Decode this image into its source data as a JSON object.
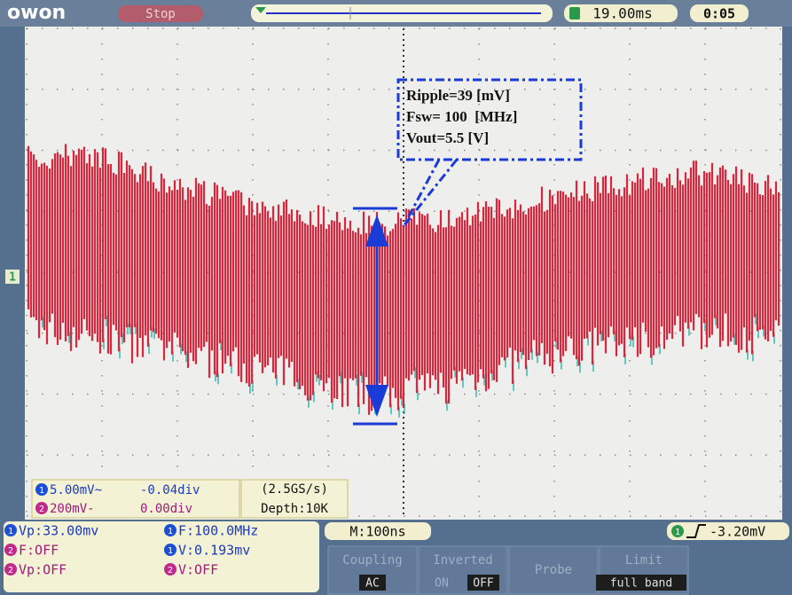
{
  "header": {
    "logo": "owon",
    "status": "Stop",
    "timebase_position": "19.00ms",
    "clock": "0:05"
  },
  "channel_marker": "1",
  "annotation": {
    "lines": [
      "Ripple=39 [mV]",
      "Fsw= 100  [MHz]",
      "Vout=5.5 [V]"
    ]
  },
  "channels": [
    {
      "badge": "1",
      "scale": "5.00mV~",
      "offset": "-0.04div"
    },
    {
      "badge": "2",
      "scale": "200mV-",
      "offset": "0.00div"
    }
  ],
  "acquisition": {
    "rate": "(2.5GS/s)",
    "depth": "Depth:10K"
  },
  "measurements": [
    {
      "badge": "1",
      "text": "Vp:33.00mv"
    },
    {
      "badge": "2",
      "text": "F:OFF"
    },
    {
      "badge": "2",
      "text": "Vp:OFF"
    },
    {
      "badge": "1",
      "text": "F:100.0MHz"
    },
    {
      "badge": "1",
      "text": "V:0.193mv"
    },
    {
      "badge": "2",
      "text": "V:OFF"
    }
  ],
  "horizontal": "M:100ns",
  "trigger": {
    "badge": "1",
    "level": "-3.20mV"
  },
  "menu": {
    "coupling": {
      "label": "Coupling",
      "value": "AC"
    },
    "inverted": {
      "label": "Inverted",
      "on": "ON",
      "off": "OFF"
    },
    "probe": {
      "label": "Probe"
    },
    "limit": {
      "label": "Limit",
      "value": "full band"
    }
  }
}
